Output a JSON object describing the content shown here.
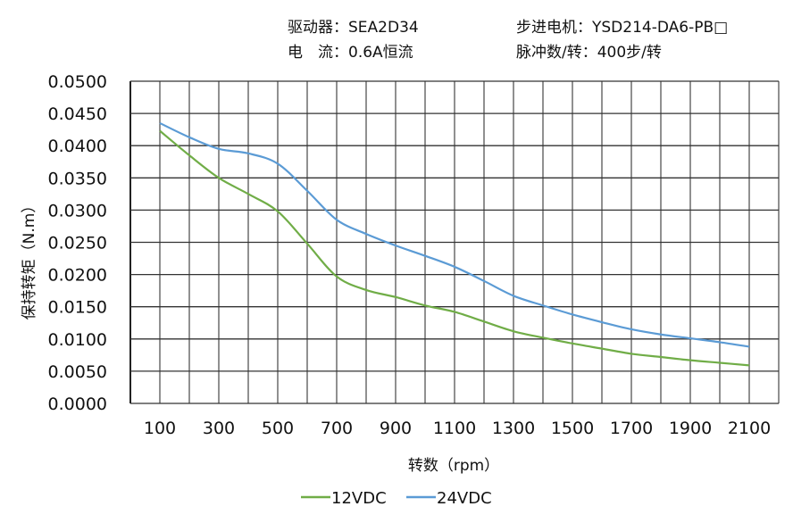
{
  "header": {
    "driver": "驱动器：SEA2D34",
    "current": "电　流：0.6A恒流",
    "motor": "步进电机：YSD214-DA6-PB□",
    "pulses": "脉冲数/转：400步/转"
  },
  "chart_data": {
    "type": "line",
    "title": "",
    "xlabel": "转数（rpm）",
    "ylabel": "保持转矩（N.m）",
    "xlim": [
      0,
      2200
    ],
    "ylim": [
      0,
      0.05
    ],
    "grid": true,
    "legend": "bottom",
    "x_ticks": [
      "100",
      "300",
      "500",
      "700",
      "900",
      "1100",
      "1300",
      "1500",
      "1700",
      "1900",
      "2100"
    ],
    "y_ticks": [
      "0.0000",
      "0.0050",
      "0.0100",
      "0.0150",
      "0.0200",
      "0.0250",
      "0.0300",
      "0.0350",
      "0.0400",
      "0.0450",
      "0.0500"
    ],
    "x": [
      100,
      200,
      300,
      400,
      500,
      600,
      700,
      800,
      900,
      1000,
      1100,
      1200,
      1300,
      1400,
      1500,
      1600,
      1700,
      1800,
      1900,
      2000,
      2100
    ],
    "series": [
      {
        "name": "12VDC",
        "color": "#70ad47",
        "values": [
          0.0423,
          0.0385,
          0.035,
          0.0325,
          0.0298,
          0.0248,
          0.0197,
          0.0176,
          0.0165,
          0.0152,
          0.0142,
          0.0127,
          0.0112,
          0.0102,
          0.0093,
          0.0085,
          0.0077,
          0.0072,
          0.0067,
          0.0063,
          0.0059
        ]
      },
      {
        "name": "24VDC",
        "color": "#5b9bd5",
        "values": [
          0.0435,
          0.0413,
          0.0395,
          0.0388,
          0.0372,
          0.033,
          0.0285,
          0.0263,
          0.0245,
          0.0229,
          0.0212,
          0.019,
          0.0167,
          0.0152,
          0.0138,
          0.0126,
          0.0115,
          0.0107,
          0.0101,
          0.0095,
          0.0088
        ]
      }
    ]
  }
}
